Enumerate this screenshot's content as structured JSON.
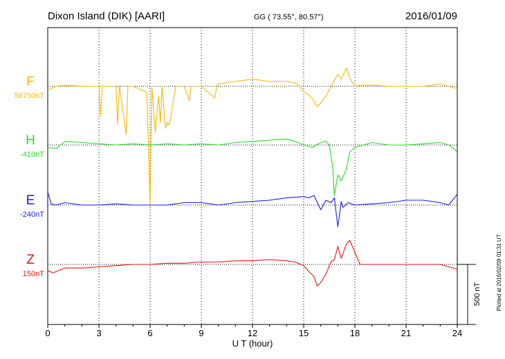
{
  "header": {
    "station": "Dixon Island (DIK)  [AARI]",
    "coords": "GG ( 73.55°,  80.57°)",
    "date": "2016/01/09"
  },
  "footer": {
    "plotted": "Plotted at 2016/02/09 01:31  UT"
  },
  "chart_data": {
    "type": "line",
    "xlabel": "U T (hour)",
    "xlim": [
      0,
      24
    ],
    "xticks": [
      0,
      3,
      6,
      9,
      12,
      15,
      18,
      21,
      24
    ],
    "scale_bar": {
      "label": "500 nT",
      "value_nT": 500
    },
    "grid": "dotted vertical at 3-hour ticks, dotted horizontal at each baseline",
    "series": [
      {
        "name": "F",
        "baseline_label": "58750nT",
        "baseline_nT": 58750,
        "color": "#f5b800",
        "x": [
          0,
          0.5,
          1,
          2,
          3,
          3.1,
          3.2,
          4,
          4.1,
          4.2,
          4.4,
          4.6,
          4.7,
          5,
          5.8,
          5.9,
          6.0,
          6.05,
          6.1,
          6.3,
          6.5,
          6.6,
          6.7,
          6.9,
          7.0,
          7.1,
          7.2,
          7.5,
          8.0,
          8.3,
          8.4,
          9.0,
          9.8,
          9.9,
          10,
          11,
          12,
          13,
          14,
          14.5,
          15,
          15.5,
          15.8,
          16,
          16.3,
          16.5,
          16.8,
          17.0,
          17.2,
          17.5,
          17.7,
          18,
          18.3,
          19,
          20,
          21,
          22,
          23,
          23.5,
          24
        ],
        "values": [
          -30,
          0,
          10,
          0,
          0,
          -250,
          0,
          0,
          -320,
          0,
          -200,
          -400,
          0,
          0,
          -50,
          -480,
          -1000,
          -480,
          0,
          -380,
          -80,
          -300,
          0,
          -350,
          -300,
          -320,
          -270,
          0,
          0,
          -120,
          0,
          0,
          -100,
          0,
          20,
          40,
          60,
          40,
          40,
          30,
          -40,
          -100,
          -170,
          -140,
          -80,
          -30,
          50,
          100,
          60,
          150,
          70,
          0,
          10,
          10,
          0,
          0,
          0,
          20,
          0,
          -20
        ]
      },
      {
        "name": "H",
        "baseline_label": "-410nT",
        "baseline_nT": -410,
        "color": "#22dd22",
        "x": [
          0,
          0.5,
          1,
          2,
          3,
          4,
          5,
          6,
          7,
          8,
          9,
          10,
          11,
          12,
          13,
          14,
          14.5,
          15,
          15.5,
          16,
          16.3,
          16.5,
          16.7,
          16.8,
          17.0,
          17.2,
          17.5,
          17.7,
          18,
          18.5,
          19,
          20,
          21,
          22,
          23,
          23.5,
          23.8,
          24
        ],
        "values": [
          -20,
          -30,
          30,
          20,
          10,
          0,
          10,
          0,
          10,
          0,
          10,
          0,
          20,
          30,
          40,
          50,
          30,
          0,
          -20,
          20,
          30,
          0,
          -180,
          -420,
          -250,
          -300,
          -200,
          -60,
          -20,
          0,
          20,
          0,
          0,
          10,
          20,
          0,
          -30,
          -60
        ]
      },
      {
        "name": "E",
        "baseline_label": "-240nT",
        "baseline_nT": -240,
        "color": "#1a1aee",
        "x": [
          0,
          0.2,
          0.5,
          1,
          2,
          3,
          4,
          5,
          6,
          7,
          8,
          9,
          10,
          11,
          12,
          13,
          14,
          15,
          15.3,
          15.6,
          16,
          16.3,
          16.6,
          16.8,
          17.0,
          17.1,
          17.2,
          17.3,
          17.6,
          18,
          19,
          20,
          21,
          22,
          23,
          23.5,
          24
        ],
        "values": [
          110,
          10,
          0,
          20,
          0,
          0,
          10,
          0,
          0,
          0,
          20,
          20,
          0,
          20,
          30,
          40,
          60,
          70,
          60,
          80,
          -40,
          40,
          20,
          60,
          -180,
          -80,
          30,
          -20,
          20,
          0,
          10,
          20,
          40,
          40,
          20,
          0,
          90
        ]
      },
      {
        "name": "Z",
        "baseline_label": "150nT",
        "baseline_nT": 150,
        "color": "#e81010",
        "x": [
          0,
          0.3,
          1,
          2,
          3,
          4,
          5,
          6,
          7,
          8,
          9,
          10,
          11,
          12,
          13,
          14,
          14.5,
          15,
          15.3,
          15.6,
          15.8,
          16,
          16.3,
          16.6,
          16.8,
          17.0,
          17.2,
          17.5,
          17.7,
          18,
          18.3,
          19,
          20,
          21,
          22,
          23,
          23.5,
          24
        ],
        "values": [
          -50,
          -70,
          -30,
          -30,
          -20,
          -10,
          0,
          0,
          10,
          10,
          20,
          20,
          30,
          30,
          40,
          30,
          20,
          -10,
          -60,
          -100,
          -180,
          -150,
          -80,
          20,
          40,
          150,
          50,
          170,
          200,
          100,
          0,
          0,
          0,
          0,
          0,
          0,
          -20,
          -40
        ]
      }
    ]
  }
}
